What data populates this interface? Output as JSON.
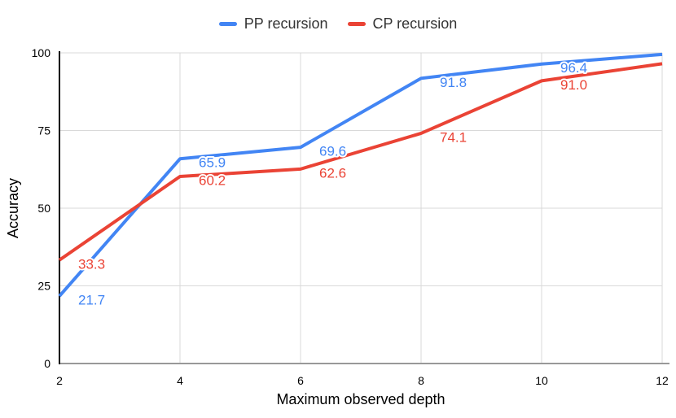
{
  "legend": {
    "items": [
      {
        "label": "PP recursion",
        "color": "#4285F4"
      },
      {
        "label": "CP recursion",
        "color": "#EA4335"
      }
    ]
  },
  "chart_data": {
    "type": "line",
    "xlabel": "Maximum observed depth",
    "ylabel": "Accuracy",
    "x": [
      2,
      4,
      6,
      8,
      10,
      12
    ],
    "xticks": [
      "2",
      "4",
      "6",
      "8",
      "10",
      "12"
    ],
    "yticks": [
      "0",
      "25",
      "50",
      "75",
      "100"
    ],
    "xlim": [
      2,
      12
    ],
    "ylim": [
      0,
      100
    ],
    "grid": true,
    "legend_position": "top-center",
    "series": [
      {
        "name": "PP recursion",
        "color": "#4285F4",
        "values": [
          21.7,
          65.9,
          69.6,
          91.8,
          96.4,
          99.5
        ],
        "point_labels": [
          "21.7",
          "65.9",
          "69.6",
          "91.8",
          "96.4",
          ""
        ]
      },
      {
        "name": "CP recursion",
        "color": "#EA4335",
        "values": [
          33.3,
          60.2,
          62.6,
          74.1,
          91.0,
          96.5
        ],
        "point_labels": [
          "33.3",
          "60.2",
          "62.6",
          "74.1",
          "91.0",
          ""
        ]
      }
    ],
    "styles": {
      "grid_color": "#d9d9d9",
      "baseline_color": "#999999",
      "axis_color": "#000000",
      "tick_color": "#000000",
      "label_halo": "#ffffff",
      "background": "#ffffff"
    }
  }
}
